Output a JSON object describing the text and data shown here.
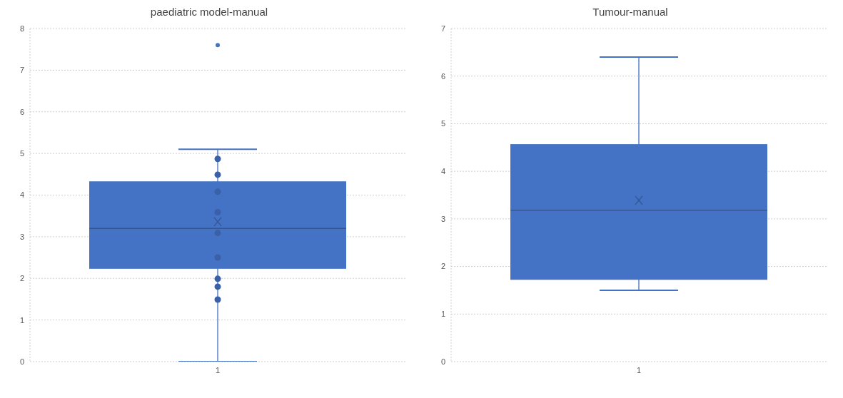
{
  "chart_data": [
    {
      "type": "box",
      "title": "paediatric model-manual",
      "categories": [
        "1"
      ],
      "ylim": [
        0,
        8
      ],
      "yticks": [
        0,
        1,
        2,
        3,
        4,
        5,
        6,
        7,
        8
      ],
      "grid": "y",
      "series": [
        {
          "type": "box",
          "color": "#4472c4",
          "boxes": [
            {
              "low": 0,
              "q1": 2.23,
              "median": 3.2,
              "q3": 4.33,
              "high": 5.1,
              "mean": 3.36,
              "outliers": [
                7.6
              ]
            }
          ]
        },
        {
          "type": "scatter",
          "color": "#3a61a7",
          "x": [
            "1",
            "1",
            "1",
            "1",
            "1",
            "1",
            "1",
            "1",
            "1"
          ],
          "values": [
            4.87,
            4.49,
            4.08,
            3.59,
            3.09,
            2.5,
            1.99,
            1.8,
            1.49
          ]
        }
      ]
    },
    {
      "type": "box",
      "title": "Tumour-manual",
      "categories": [
        "1"
      ],
      "ylim": [
        0,
        7
      ],
      "yticks": [
        0,
        1,
        2,
        3,
        4,
        5,
        6,
        7
      ],
      "grid": "y",
      "series": [
        {
          "type": "box",
          "color": "#4472c4",
          "boxes": [
            {
              "low": 1.5,
              "q1": 1.72,
              "median": 3.18,
              "q3": 4.57,
              "high": 6.4,
              "mean": 3.39
            }
          ]
        }
      ]
    }
  ]
}
